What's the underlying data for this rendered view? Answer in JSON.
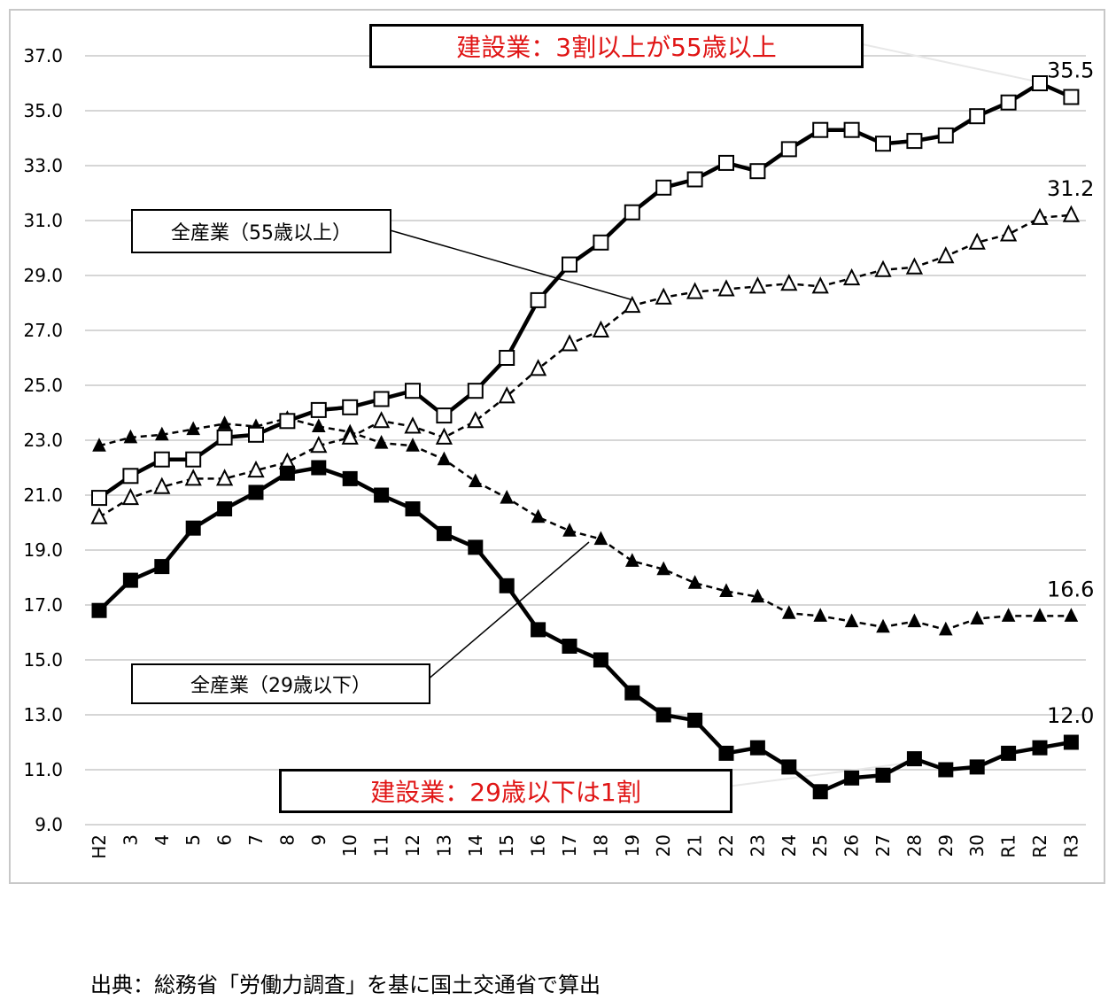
{
  "chart_data": {
    "type": "line",
    "categories": [
      "H2",
      "3",
      "4",
      "5",
      "6",
      "7",
      "8",
      "9",
      "10",
      "11",
      "12",
      "13",
      "14",
      "15",
      "16",
      "17",
      "18",
      "19",
      "20",
      "21",
      "22",
      "23",
      "24",
      "25",
      "26",
      "27",
      "28",
      "29",
      "30",
      "R1",
      "R2",
      "R3"
    ],
    "ylim": [
      9.0,
      37.0
    ],
    "yticks": [
      "9.0",
      "11.0",
      "13.0",
      "15.0",
      "17.0",
      "19.0",
      "21.0",
      "23.0",
      "25.0",
      "27.0",
      "29.0",
      "31.0",
      "33.0",
      "35.0",
      "37.0"
    ],
    "grid": true,
    "series": [
      {
        "name": "建設業(55歳以上)",
        "style": "solid-open-square",
        "values": [
          20.9,
          21.7,
          22.3,
          22.3,
          23.1,
          23.2,
          23.7,
          24.1,
          24.2,
          24.5,
          24.8,
          23.9,
          24.8,
          26.0,
          28.1,
          29.4,
          30.2,
          31.3,
          32.2,
          32.5,
          33.1,
          32.8,
          33.6,
          34.3,
          34.3,
          33.8,
          33.9,
          34.1,
          34.8,
          35.3,
          36.0,
          35.5
        ],
        "end_label": "35.5"
      },
      {
        "name": "全産業(55歳以上)",
        "style": "dashed-open-triangle",
        "values": [
          20.2,
          20.9,
          21.3,
          21.6,
          21.6,
          21.9,
          22.2,
          22.8,
          23.1,
          23.7,
          23.5,
          23.1,
          23.7,
          24.6,
          25.6,
          26.5,
          27.0,
          27.9,
          28.2,
          28.4,
          28.5,
          28.6,
          28.7,
          28.6,
          28.9,
          29.2,
          29.3,
          29.7,
          30.2,
          30.5,
          31.1,
          31.2
        ],
        "end_label": "31.2"
      },
      {
        "name": "全産業(29歳以下)",
        "style": "dashed-filled-triangle",
        "values": [
          22.8,
          23.1,
          23.2,
          23.4,
          23.6,
          23.5,
          23.8,
          23.5,
          23.3,
          22.9,
          22.8,
          22.3,
          21.5,
          20.9,
          20.2,
          19.7,
          19.4,
          18.6,
          18.3,
          17.8,
          17.5,
          17.3,
          16.7,
          16.6,
          16.4,
          16.2,
          16.4,
          16.1,
          16.5,
          16.6,
          16.6,
          16.6
        ],
        "end_label": "16.6"
      },
      {
        "name": "建設業(29歳以下)",
        "style": "solid-filled-square",
        "values": [
          16.8,
          17.9,
          18.4,
          19.8,
          20.5,
          21.1,
          21.8,
          22.0,
          21.6,
          21.0,
          20.5,
          19.6,
          19.1,
          17.7,
          16.1,
          15.5,
          15.0,
          13.8,
          13.0,
          12.8,
          11.6,
          11.8,
          11.1,
          10.2,
          10.7,
          10.8,
          11.4,
          11.0,
          11.1,
          11.6,
          11.8,
          12.0
        ],
        "end_label": "12.0"
      }
    ]
  },
  "callouts": {
    "top_red": "建設業：3割以上が55歳以上",
    "bottom_red": "建設業：29歳以下は1割",
    "all55": "全産業（55歳以上）",
    "all29": "全産業（29歳以下）"
  },
  "source": "出典：総務省「労働力調査」を基に国土交通省で算出"
}
